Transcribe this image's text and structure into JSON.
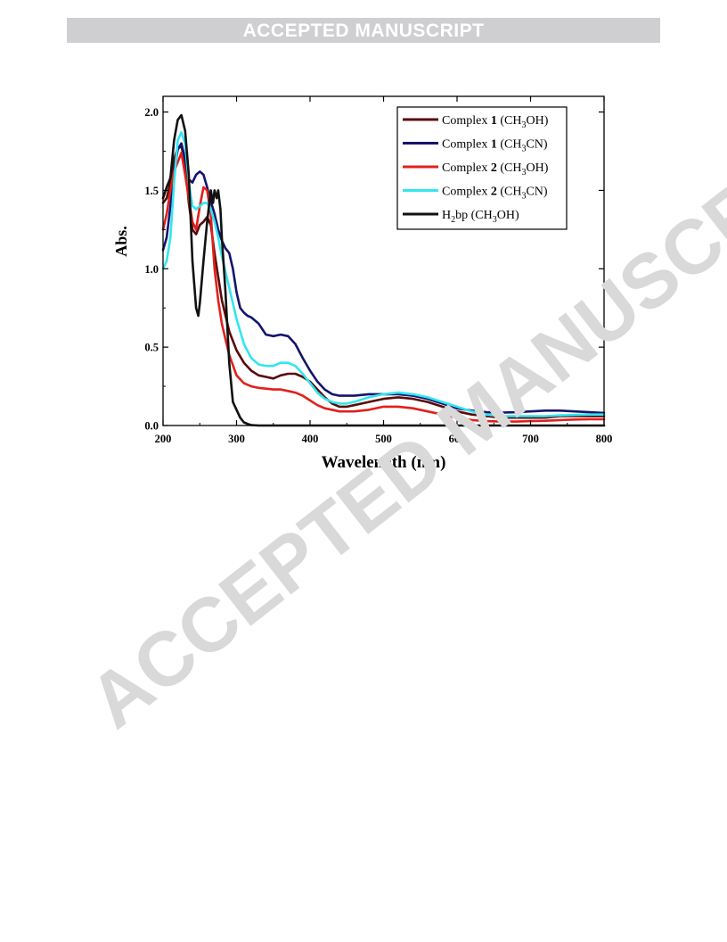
{
  "header": {
    "banner_text": "ACCEPTED MANUSCRIPT"
  },
  "watermark": {
    "text": "ACCEPTED MANUSCRIPT",
    "color": "#d9d9d9"
  },
  "chart_data": {
    "type": "line",
    "title": "",
    "xlabel": "Wavelength (nm)",
    "ylabel": "Abs.",
    "xlim": [
      200,
      800
    ],
    "ylim": [
      0.0,
      2.1
    ],
    "xticks": [
      200,
      300,
      400,
      500,
      600,
      700,
      800
    ],
    "yticks": [
      0.0,
      0.5,
      1.0,
      1.5,
      2.0
    ],
    "xtick_labels": [
      "200",
      "300",
      "400",
      "500",
      "600",
      "700",
      "800"
    ],
    "ytick_labels": [
      "0.0",
      "0.5",
      "1.0",
      "1.5",
      "2.0"
    ],
    "grid": false,
    "legend_position": "top-right",
    "series": [
      {
        "legend_pre": "Complex ",
        "legend_bold": "1",
        "legend_post": " (CH",
        "legend_sub": "3",
        "legend_tail": "OH)",
        "color": "#5a0a0a",
        "points": [
          [
            200,
            1.42
          ],
          [
            205,
            1.45
          ],
          [
            210,
            1.55
          ],
          [
            215,
            1.7
          ],
          [
            220,
            1.77
          ],
          [
            225,
            1.78
          ],
          [
            230,
            1.68
          ],
          [
            235,
            1.42
          ],
          [
            240,
            1.25
          ],
          [
            245,
            1.22
          ],
          [
            250,
            1.28
          ],
          [
            255,
            1.3
          ],
          [
            260,
            1.33
          ],
          [
            265,
            1.28
          ],
          [
            270,
            1.1
          ],
          [
            275,
            0.95
          ],
          [
            280,
            0.8
          ],
          [
            290,
            0.6
          ],
          [
            300,
            0.48
          ],
          [
            310,
            0.4
          ],
          [
            320,
            0.35
          ],
          [
            330,
            0.32
          ],
          [
            340,
            0.31
          ],
          [
            350,
            0.3
          ],
          [
            360,
            0.32
          ],
          [
            370,
            0.33
          ],
          [
            380,
            0.33
          ],
          [
            390,
            0.31
          ],
          [
            400,
            0.28
          ],
          [
            410,
            0.23
          ],
          [
            420,
            0.18
          ],
          [
            430,
            0.14
          ],
          [
            440,
            0.12
          ],
          [
            450,
            0.12
          ],
          [
            460,
            0.13
          ],
          [
            480,
            0.15
          ],
          [
            500,
            0.17
          ],
          [
            520,
            0.18
          ],
          [
            540,
            0.17
          ],
          [
            560,
            0.15
          ],
          [
            580,
            0.12
          ],
          [
            600,
            0.09
          ],
          [
            620,
            0.07
          ],
          [
            640,
            0.06
          ],
          [
            660,
            0.05
          ],
          [
            680,
            0.05
          ],
          [
            700,
            0.05
          ],
          [
            720,
            0.05
          ],
          [
            740,
            0.06
          ],
          [
            760,
            0.06
          ],
          [
            780,
            0.06
          ],
          [
            800,
            0.06
          ]
        ]
      },
      {
        "legend_pre": "Complex ",
        "legend_bold": "1",
        "legend_post": " (CH",
        "legend_sub": "3",
        "legend_tail": "CN)",
        "color": "#14146e",
        "points": [
          [
            200,
            1.12
          ],
          [
            205,
            1.2
          ],
          [
            210,
            1.4
          ],
          [
            215,
            1.62
          ],
          [
            220,
            1.76
          ],
          [
            225,
            1.8
          ],
          [
            230,
            1.7
          ],
          [
            235,
            1.57
          ],
          [
            240,
            1.55
          ],
          [
            245,
            1.6
          ],
          [
            250,
            1.62
          ],
          [
            255,
            1.6
          ],
          [
            260,
            1.52
          ],
          [
            265,
            1.43
          ],
          [
            270,
            1.35
          ],
          [
            275,
            1.25
          ],
          [
            280,
            1.18
          ],
          [
            285,
            1.13
          ],
          [
            290,
            1.1
          ],
          [
            295,
            1.0
          ],
          [
            300,
            0.85
          ],
          [
            305,
            0.75
          ],
          [
            310,
            0.72
          ],
          [
            315,
            0.7
          ],
          [
            320,
            0.69
          ],
          [
            330,
            0.65
          ],
          [
            340,
            0.58
          ],
          [
            350,
            0.57
          ],
          [
            360,
            0.58
          ],
          [
            370,
            0.57
          ],
          [
            380,
            0.52
          ],
          [
            390,
            0.43
          ],
          [
            400,
            0.35
          ],
          [
            410,
            0.28
          ],
          [
            420,
            0.23
          ],
          [
            430,
            0.2
          ],
          [
            440,
            0.19
          ],
          [
            460,
            0.19
          ],
          [
            480,
            0.2
          ],
          [
            500,
            0.2
          ],
          [
            520,
            0.2
          ],
          [
            540,
            0.19
          ],
          [
            560,
            0.17
          ],
          [
            580,
            0.14
          ],
          [
            600,
            0.11
          ],
          [
            620,
            0.095
          ],
          [
            640,
            0.085
          ],
          [
            660,
            0.082
          ],
          [
            680,
            0.085
          ],
          [
            700,
            0.09
          ],
          [
            720,
            0.095
          ],
          [
            740,
            0.095
          ],
          [
            760,
            0.09
          ],
          [
            780,
            0.085
          ],
          [
            800,
            0.08
          ]
        ]
      },
      {
        "legend_pre": "Complex ",
        "legend_bold": "2",
        "legend_post": " (CH",
        "legend_sub": "3",
        "legend_tail": "OH)",
        "color": "#e0201c",
        "points": [
          [
            200,
            1.25
          ],
          [
            205,
            1.35
          ],
          [
            210,
            1.5
          ],
          [
            215,
            1.62
          ],
          [
            220,
            1.68
          ],
          [
            225,
            1.74
          ],
          [
            230,
            1.6
          ],
          [
            235,
            1.45
          ],
          [
            240,
            1.3
          ],
          [
            245,
            1.25
          ],
          [
            250,
            1.4
          ],
          [
            255,
            1.52
          ],
          [
            260,
            1.5
          ],
          [
            265,
            1.35
          ],
          [
            270,
            1.0
          ],
          [
            275,
            0.8
          ],
          [
            280,
            0.65
          ],
          [
            285,
            0.55
          ],
          [
            290,
            0.45
          ],
          [
            300,
            0.32
          ],
          [
            310,
            0.27
          ],
          [
            320,
            0.25
          ],
          [
            330,
            0.24
          ],
          [
            340,
            0.235
          ],
          [
            350,
            0.23
          ],
          [
            360,
            0.23
          ],
          [
            370,
            0.22
          ],
          [
            380,
            0.21
          ],
          [
            390,
            0.19
          ],
          [
            400,
            0.16
          ],
          [
            410,
            0.13
          ],
          [
            420,
            0.11
          ],
          [
            440,
            0.09
          ],
          [
            460,
            0.09
          ],
          [
            480,
            0.1
          ],
          [
            500,
            0.12
          ],
          [
            520,
            0.12
          ],
          [
            540,
            0.11
          ],
          [
            560,
            0.09
          ],
          [
            580,
            0.07
          ],
          [
            600,
            0.05
          ],
          [
            620,
            0.035
          ],
          [
            640,
            0.028
          ],
          [
            660,
            0.025
          ],
          [
            680,
            0.025
          ],
          [
            700,
            0.028
          ],
          [
            720,
            0.03
          ],
          [
            740,
            0.035
          ],
          [
            760,
            0.038
          ],
          [
            780,
            0.04
          ],
          [
            800,
            0.04
          ]
        ]
      },
      {
        "legend_pre": "Complex ",
        "legend_bold": "2",
        "legend_post": " (CH",
        "legend_sub": "3",
        "legend_tail": "CN)",
        "color": "#33e5f0",
        "points": [
          [
            200,
            1.0
          ],
          [
            205,
            1.05
          ],
          [
            210,
            1.2
          ],
          [
            215,
            1.55
          ],
          [
            220,
            1.82
          ],
          [
            225,
            1.87
          ],
          [
            230,
            1.8
          ],
          [
            235,
            1.55
          ],
          [
            240,
            1.4
          ],
          [
            245,
            1.38
          ],
          [
            250,
            1.4
          ],
          [
            255,
            1.42
          ],
          [
            260,
            1.42
          ],
          [
            265,
            1.38
          ],
          [
            270,
            1.3
          ],
          [
            275,
            1.2
          ],
          [
            280,
            1.08
          ],
          [
            290,
            0.88
          ],
          [
            300,
            0.68
          ],
          [
            310,
            0.52
          ],
          [
            320,
            0.43
          ],
          [
            330,
            0.39
          ],
          [
            340,
            0.38
          ],
          [
            350,
            0.38
          ],
          [
            360,
            0.4
          ],
          [
            370,
            0.4
          ],
          [
            380,
            0.38
          ],
          [
            390,
            0.33
          ],
          [
            400,
            0.27
          ],
          [
            410,
            0.21
          ],
          [
            420,
            0.17
          ],
          [
            430,
            0.15
          ],
          [
            440,
            0.14
          ],
          [
            450,
            0.14
          ],
          [
            460,
            0.15
          ],
          [
            480,
            0.18
          ],
          [
            500,
            0.2
          ],
          [
            520,
            0.21
          ],
          [
            540,
            0.2
          ],
          [
            560,
            0.18
          ],
          [
            580,
            0.15
          ],
          [
            600,
            0.12
          ],
          [
            620,
            0.09
          ],
          [
            640,
            0.07
          ],
          [
            660,
            0.06
          ],
          [
            680,
            0.06
          ],
          [
            700,
            0.06
          ],
          [
            720,
            0.06
          ],
          [
            740,
            0.065
          ],
          [
            760,
            0.068
          ],
          [
            780,
            0.07
          ],
          [
            800,
            0.07
          ]
        ]
      },
      {
        "legend_pre": "H",
        "legend_bold": "",
        "legend_post": "",
        "legend_sub": "2",
        "legend_tail": "bp (CH",
        "legend_sub2": "3",
        "legend_tail2": "OH)",
        "color": "#111111",
        "points": [
          [
            200,
            1.45
          ],
          [
            205,
            1.52
          ],
          [
            210,
            1.58
          ],
          [
            215,
            1.82
          ],
          [
            220,
            1.95
          ],
          [
            225,
            1.98
          ],
          [
            230,
            1.88
          ],
          [
            235,
            1.6
          ],
          [
            240,
            1.05
          ],
          [
            245,
            0.75
          ],
          [
            248,
            0.7
          ],
          [
            250,
            0.78
          ],
          [
            255,
            1.05
          ],
          [
            260,
            1.3
          ],
          [
            265,
            1.5
          ],
          [
            268,
            1.42
          ],
          [
            270,
            1.5
          ],
          [
            273,
            1.45
          ],
          [
            275,
            1.5
          ],
          [
            278,
            1.38
          ],
          [
            280,
            1.2
          ],
          [
            285,
            0.85
          ],
          [
            290,
            0.4
          ],
          [
            295,
            0.15
          ],
          [
            300,
            0.1
          ],
          [
            305,
            0.05
          ],
          [
            310,
            0.02
          ],
          [
            315,
            0.01
          ],
          [
            320,
            0.003
          ],
          [
            330,
            0.0
          ],
          [
            350,
            0.0
          ],
          [
            400,
            0.0
          ],
          [
            500,
            0.0
          ],
          [
            600,
            0.0
          ],
          [
            700,
            0.0
          ],
          [
            800,
            0.0
          ]
        ]
      }
    ]
  }
}
